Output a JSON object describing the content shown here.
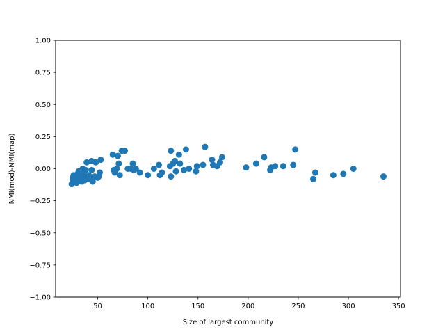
{
  "chart_data": {
    "type": "scatter",
    "title": "",
    "xlabel": "Size of largest community",
    "ylabel": "NMI(mod)-NMI(map)",
    "xlim": [
      8,
      352
    ],
    "ylim": [
      -1.0,
      1.0
    ],
    "xticks": [
      50,
      100,
      150,
      200,
      250,
      300,
      350
    ],
    "yticks": [
      -1.0,
      -0.75,
      -0.5,
      -0.25,
      0.0,
      0.25,
      0.5,
      0.75,
      1.0
    ],
    "xtick_labels": [
      "50",
      "100",
      "150",
      "200",
      "250",
      "300",
      "350"
    ],
    "ytick_labels": [
      "−1.00",
      "−0.75",
      "−0.50",
      "−0.25",
      "0.00",
      "0.25",
      "0.50",
      "0.75",
      "1.00"
    ],
    "grid": false,
    "marker_color": "#1f77b4",
    "series": [
      {
        "points": [
          {
            "x": 24,
            "y": -0.12
          },
          {
            "x": 25,
            "y": -0.1
          },
          {
            "x": 25,
            "y": -0.07
          },
          {
            "x": 26,
            "y": -0.05
          },
          {
            "x": 27,
            "y": -0.09
          },
          {
            "x": 28,
            "y": -0.06
          },
          {
            "x": 29,
            "y": -0.11
          },
          {
            "x": 30,
            "y": -0.04
          },
          {
            "x": 31,
            "y": -0.02
          },
          {
            "x": 32,
            "y": -0.07
          },
          {
            "x": 33,
            "y": -0.08
          },
          {
            "x": 34,
            "y": -0.1
          },
          {
            "x": 35,
            "y": -0.03
          },
          {
            "x": 35,
            "y": 0.0
          },
          {
            "x": 36,
            "y": -0.06
          },
          {
            "x": 37,
            "y": -0.09
          },
          {
            "x": 38,
            "y": -0.01
          },
          {
            "x": 39,
            "y": 0.05
          },
          {
            "x": 40,
            "y": -0.07
          },
          {
            "x": 41,
            "y": -0.05
          },
          {
            "x": 42,
            "y": -0.08
          },
          {
            "x": 43,
            "y": -0.07
          },
          {
            "x": 44,
            "y": -0.01
          },
          {
            "x": 44,
            "y": 0.06
          },
          {
            "x": 45,
            "y": -0.1
          },
          {
            "x": 47,
            "y": -0.06
          },
          {
            "x": 48,
            "y": 0.05
          },
          {
            "x": 50,
            "y": -0.07
          },
          {
            "x": 51,
            "y": -0.06
          },
          {
            "x": 52,
            "y": -0.03
          },
          {
            "x": 53,
            "y": 0.07
          },
          {
            "x": 65,
            "y": 0.11
          },
          {
            "x": 66,
            "y": -0.01
          },
          {
            "x": 67,
            "y": -0.03
          },
          {
            "x": 69,
            "y": 0.0
          },
          {
            "x": 70,
            "y": 0.1
          },
          {
            "x": 71,
            "y": 0.04
          },
          {
            "x": 72,
            "y": -0.05
          },
          {
            "x": 74,
            "y": 0.14
          },
          {
            "x": 77,
            "y": 0.14
          },
          {
            "x": 80,
            "y": 0.0
          },
          {
            "x": 83,
            "y": 0.0
          },
          {
            "x": 85,
            "y": 0.04
          },
          {
            "x": 86,
            "y": -0.01
          },
          {
            "x": 88,
            "y": 0.0
          },
          {
            "x": 92,
            "y": -0.03
          },
          {
            "x": 100,
            "y": -0.05
          },
          {
            "x": 106,
            "y": 0.0
          },
          {
            "x": 111,
            "y": 0.03
          },
          {
            "x": 112,
            "y": -0.05
          },
          {
            "x": 114,
            "y": -0.03
          },
          {
            "x": 122,
            "y": 0.02
          },
          {
            "x": 123,
            "y": 0.14
          },
          {
            "x": 123,
            "y": -0.06
          },
          {
            "x": 125,
            "y": 0.04
          },
          {
            "x": 127,
            "y": 0.06
          },
          {
            "x": 128,
            "y": -0.02
          },
          {
            "x": 131,
            "y": 0.11
          },
          {
            "x": 132,
            "y": 0.04
          },
          {
            "x": 136,
            "y": -0.01
          },
          {
            "x": 138,
            "y": 0.15
          },
          {
            "x": 141,
            "y": 0.0
          },
          {
            "x": 148,
            "y": -0.02
          },
          {
            "x": 149,
            "y": 0.02
          },
          {
            "x": 155,
            "y": 0.03
          },
          {
            "x": 157,
            "y": 0.17
          },
          {
            "x": 164,
            "y": 0.07
          },
          {
            "x": 165,
            "y": 0.03
          },
          {
            "x": 169,
            "y": 0.02
          },
          {
            "x": 172,
            "y": 0.05
          },
          {
            "x": 174,
            "y": 0.09
          },
          {
            "x": 198,
            "y": 0.01
          },
          {
            "x": 208,
            "y": 0.04
          },
          {
            "x": 216,
            "y": 0.09
          },
          {
            "x": 222,
            "y": -0.01
          },
          {
            "x": 223,
            "y": 0.01
          },
          {
            "x": 227,
            "y": 0.02
          },
          {
            "x": 235,
            "y": 0.02
          },
          {
            "x": 245,
            "y": 0.03
          },
          {
            "x": 247,
            "y": 0.15
          },
          {
            "x": 265,
            "y": -0.08
          },
          {
            "x": 267,
            "y": -0.03
          },
          {
            "x": 285,
            "y": -0.05
          },
          {
            "x": 295,
            "y": -0.04
          },
          {
            "x": 305,
            "y": 0.0
          },
          {
            "x": 335,
            "y": -0.06
          }
        ]
      }
    ]
  }
}
